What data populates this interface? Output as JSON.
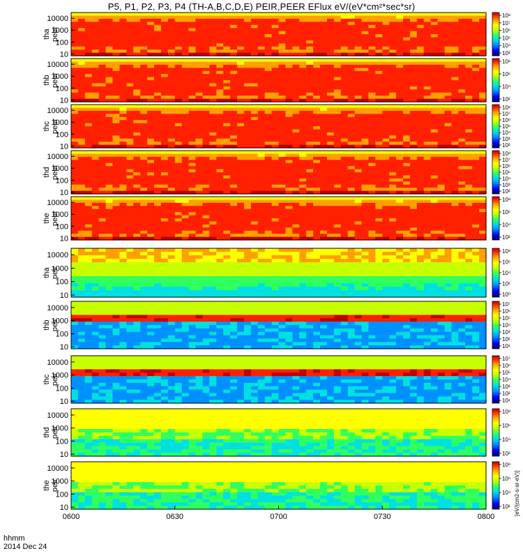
{
  "figure": {
    "title": "P5, P1, P2, P3, P4 (TH-A,B,C,D,E) PEIR,PEER EFlux eV/(eV*cm²*sec*sr)",
    "footer_line1": "hhmm",
    "footer_line2": "2014 Dec 24",
    "colorbar_unit_label": "[eV/(cm2-s-sr-eV)]"
  },
  "chart_data": {
    "type": "heatmap",
    "title": "P5, P1, P2, P3, P4 (TH-A,B,C,D,E) PEIR,PEER EFlux eV/(eV*cm²*sec*sr)",
    "x": {
      "label": "hhmm",
      "range": [
        "0600",
        "0800"
      ],
      "ticks": [
        "0600",
        "0630",
        "0700",
        "0730",
        "0800"
      ]
    },
    "y_scale": "log",
    "panels": [
      {
        "id": "tha-peer",
        "label_line1": "tha",
        "label_line2": "peer",
        "yticks": [
          "10",
          "100",
          "1000",
          "10000"
        ],
        "ylim": [
          7,
          30000
        ],
        "cbar_ticks": [
          "10⁸",
          "10⁷",
          "10⁶",
          "10⁵",
          "10⁴",
          "10³"
        ]
      },
      {
        "id": "thb-peer",
        "label_line1": "thb",
        "label_line2": "peer",
        "yticks": [
          "10",
          "100",
          "1000",
          "10000"
        ],
        "ylim": [
          7,
          30000
        ],
        "cbar_ticks": [
          "10⁸",
          "10⁶",
          "10⁴",
          "10²"
        ]
      },
      {
        "id": "thc-peer",
        "label_line1": "thc",
        "label_line2": "peer",
        "yticks": [
          "10",
          "100",
          "1000",
          "10000"
        ],
        "ylim": [
          7,
          30000
        ],
        "cbar_ticks": [
          "10⁸",
          "10⁷",
          "10⁶",
          "10⁵",
          "10⁴",
          "10³",
          "10²"
        ]
      },
      {
        "id": "thd-peer",
        "label_line1": "thd",
        "label_line2": "peer",
        "yticks": [
          "10",
          "100",
          "1000",
          "10000"
        ],
        "ylim": [
          7,
          30000
        ],
        "cbar_ticks": [
          "10⁸",
          "10⁷",
          "10⁶",
          "10⁵",
          "10⁴",
          "10³",
          "10²"
        ]
      },
      {
        "id": "the-peer",
        "label_line1": "the",
        "label_line2": "peer",
        "yticks": [
          "10",
          "100",
          "1000",
          "10000"
        ],
        "ylim": [
          7,
          30000
        ],
        "cbar_ticks": [
          "10⁸",
          "10⁶",
          "10⁴",
          "10²"
        ]
      },
      {
        "id": "tha-peir",
        "label_line1": "tha",
        "label_line2": "peir",
        "yticks": [
          "10",
          "100",
          "1000",
          "10000"
        ],
        "ylim": [
          7,
          30000
        ],
        "cbar_ticks": [
          "10⁸",
          "10⁶",
          "10⁴",
          "10²",
          "10⁰"
        ]
      },
      {
        "id": "thb-peir",
        "label_line1": "thb",
        "label_line2": "peir",
        "yticks": [
          "10",
          "100",
          "1000",
          "10000"
        ],
        "ylim": [
          7,
          30000
        ],
        "cbar_ticks": [
          "10⁷",
          "10⁶",
          "10⁵",
          "10⁴",
          "10³",
          "10²",
          "10¹"
        ]
      },
      {
        "id": "thc-peir",
        "label_line1": "thc",
        "label_line2": "peir",
        "yticks": [
          "10",
          "100",
          "1000",
          "10000"
        ],
        "ylim": [
          7,
          30000
        ],
        "cbar_ticks": [
          "10⁷",
          "10⁶",
          "10⁵",
          "10⁴",
          "10³",
          "10²",
          "10¹"
        ]
      },
      {
        "id": "thd-peir",
        "label_line1": "thd",
        "label_line2": "peir",
        "yticks": [
          "10",
          "100",
          "1000",
          "10000"
        ],
        "ylim": [
          7,
          30000
        ],
        "cbar_ticks": [
          "10⁸",
          "10⁶",
          "10⁴",
          "10²"
        ]
      },
      {
        "id": "the-peir",
        "label_line1": "the",
        "label_line2": "peir",
        "yticks": [
          "10",
          "100",
          "1000",
          "10000"
        ],
        "ylim": [
          7,
          30000
        ],
        "cbar_ticks": [
          "10⁸",
          "10⁶",
          "10⁴",
          "10²"
        ]
      }
    ],
    "colormap": [
      "#00006a",
      "#0000ff",
      "#0090ff",
      "#00e0e0",
      "#30ff60",
      "#c8ff00",
      "#ffff00",
      "#ffa000",
      "#ff2000",
      "#c00000"
    ]
  }
}
